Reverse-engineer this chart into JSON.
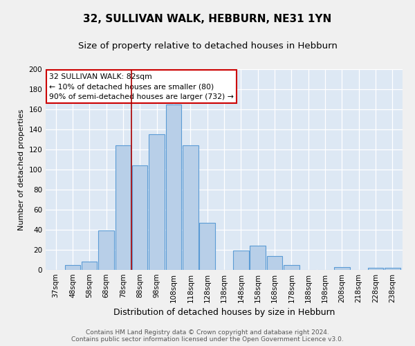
{
  "title": "32, SULLIVAN WALK, HEBBURN, NE31 1YN",
  "subtitle": "Size of property relative to detached houses in Hebburn",
  "xlabel": "Distribution of detached houses by size in Hebburn",
  "ylabel": "Number of detached properties",
  "bin_labels": [
    "37sqm",
    "48sqm",
    "58sqm",
    "68sqm",
    "78sqm",
    "88sqm",
    "98sqm",
    "108sqm",
    "118sqm",
    "128sqm",
    "138sqm",
    "148sqm",
    "158sqm",
    "168sqm",
    "178sqm",
    "188sqm",
    "198sqm",
    "208sqm",
    "218sqm",
    "228sqm",
    "238sqm"
  ],
  "bar_heights": [
    0,
    5,
    8,
    39,
    124,
    104,
    135,
    165,
    124,
    47,
    0,
    19,
    24,
    14,
    5,
    0,
    0,
    3,
    0,
    2,
    2
  ],
  "bar_color": "#b8cfe8",
  "bar_edgecolor": "#5b9bd5",
  "ylim": [
    0,
    200
  ],
  "yticks": [
    0,
    20,
    40,
    60,
    80,
    100,
    120,
    140,
    160,
    180,
    200
  ],
  "vline_x": 4.5,
  "vline_color": "#aa0000",
  "annotation_title": "32 SULLIVAN WALK: 82sqm",
  "annotation_line1": "← 10% of detached houses are smaller (80)",
  "annotation_line2": "90% of semi-detached houses are larger (732) →",
  "annotation_box_color": "#ffffff",
  "annotation_box_edgecolor": "#cc0000",
  "footer_line1": "Contains HM Land Registry data © Crown copyright and database right 2024.",
  "footer_line2": "Contains public sector information licensed under the Open Government Licence v3.0.",
  "bg_color": "#dde8f4",
  "fig_bg_color": "#f0f0f0",
  "title_fontsize": 11,
  "subtitle_fontsize": 9.5,
  "xlabel_fontsize": 9,
  "ylabel_fontsize": 8,
  "tick_fontsize": 7.5,
  "footer_fontsize": 6.5,
  "annotation_fontsize": 7.8
}
